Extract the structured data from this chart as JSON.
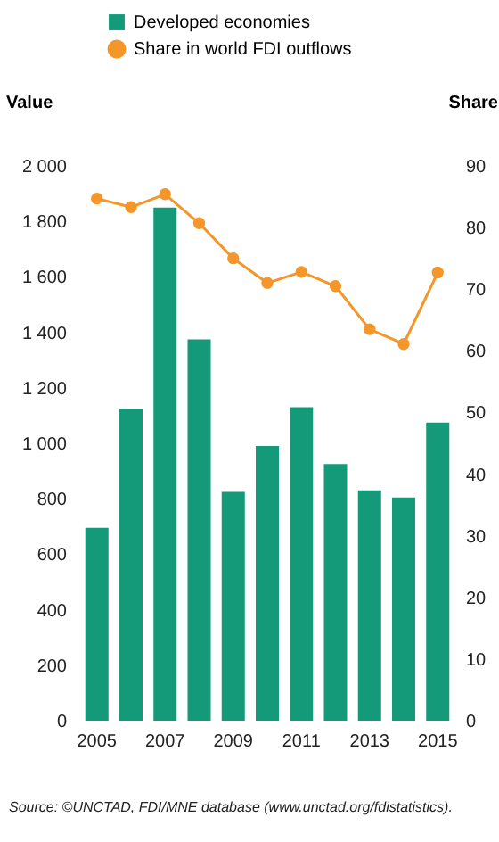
{
  "chart_data": {
    "type": "bar",
    "categories": [
      "2005",
      null,
      "2007",
      null,
      "2009",
      null,
      "2011",
      null,
      "2013",
      null,
      "2015"
    ],
    "series": [
      {
        "name": "Developed economies",
        "color": "#149a78",
        "values": [
          695,
          1125,
          1850,
          1375,
          825,
          990,
          1130,
          925,
          830,
          805,
          1075
        ]
      },
      {
        "name": "Share in world FDI outflows",
        "type": "line",
        "axis": "y2",
        "color": "#f5962a",
        "values": [
          84.7,
          83.3,
          85.4,
          80.7,
          75.0,
          71.0,
          72.8,
          70.5,
          63.5,
          61.1,
          72.7
        ]
      }
    ],
    "ylabel": "Value",
    "y2label": "Share",
    "ylim": [
      0,
      2000
    ],
    "yticks": [
      0,
      200,
      400,
      600,
      800,
      {
        "value": 1000,
        "label": "1 000"
      },
      {
        "value": 1200,
        "label": "1 200"
      },
      {
        "value": 1400,
        "label": "1 400"
      },
      {
        "value": 1600,
        "label": "1 600"
      },
      {
        "value": 1800,
        "label": "1 800"
      },
      {
        "value": 2000,
        "label": "2 000"
      }
    ],
    "y2lim": [
      0,
      90
    ],
    "y2ticks": [
      0,
      10,
      20,
      30,
      40,
      50,
      60,
      70,
      80,
      90
    ],
    "marker": "circle",
    "legend": "top",
    "annotations": [
      "Source: ©UNCTAD, FDI/MNE database (www.unctad.org/fdistatistics)."
    ]
  }
}
